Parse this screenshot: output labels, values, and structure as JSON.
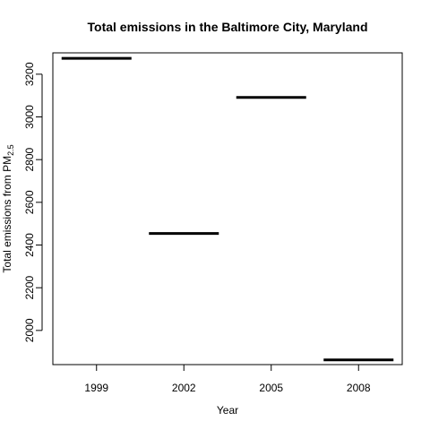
{
  "chart_data": {
    "type": "bar",
    "title": "Total emissions in the Baltimore City, Maryland",
    "xlabel": "Year",
    "ylabel": "Total emissions from PM",
    "ylabel_subscript": "2.5",
    "categories": [
      "1999",
      "2002",
      "2005",
      "2008"
    ],
    "values": [
      3274.18,
      2453.92,
      3091.35,
      1862.28
    ],
    "ylim": [
      1840,
      3300
    ],
    "yticks": [
      2000,
      2200,
      2400,
      2600,
      2800,
      3000,
      3200
    ],
    "grid": false,
    "legend": "none",
    "line_color": "#000000"
  }
}
